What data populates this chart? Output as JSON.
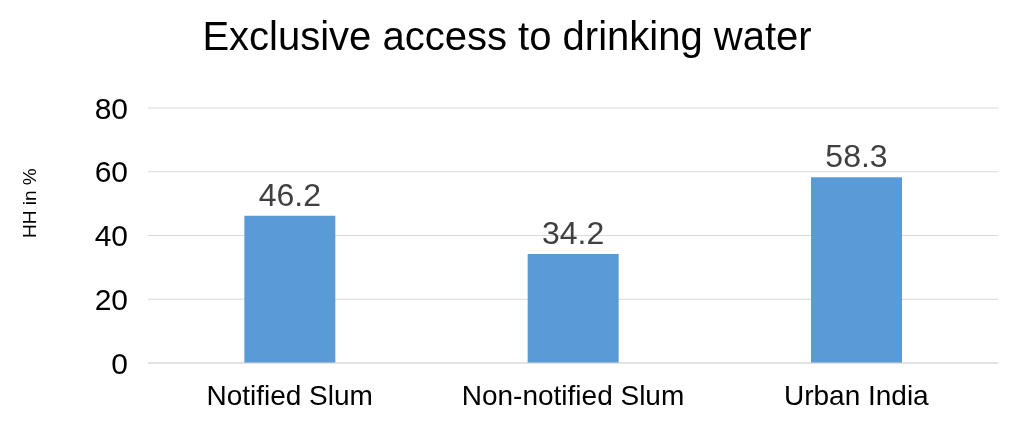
{
  "chart_data": {
    "type": "bar",
    "title": "Exclusive access to drinking water",
    "ylabel": "HH in %",
    "categories": [
      "Notified Slum",
      "Non-notified Slum",
      "Urban India"
    ],
    "values": [
      46.2,
      34.2,
      58.3
    ],
    "color": "#5b9bd5",
    "ylim": [
      0,
      80
    ],
    "yticks": [
      0,
      20,
      40,
      60,
      80
    ],
    "grid": "y",
    "data_labels": true
  }
}
